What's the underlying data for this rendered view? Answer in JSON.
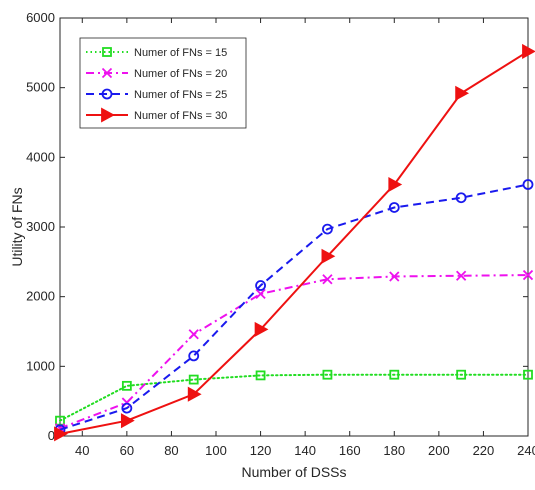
{
  "chart_data": {
    "type": "line",
    "xlabel": "Number of DSSs",
    "ylabel": "Utility of FNs",
    "xlim": [
      30,
      240
    ],
    "ylim": [
      0,
      6000
    ],
    "xticks": [
      40,
      60,
      80,
      100,
      120,
      140,
      160,
      180,
      200,
      220,
      240
    ],
    "yticks": [
      0,
      1000,
      2000,
      3000,
      4000,
      5000,
      6000
    ],
    "grid": false,
    "legend_position": "top-left",
    "x": [
      30,
      60,
      90,
      120,
      150,
      180,
      210,
      240
    ],
    "series": [
      {
        "name": "Numer of FNs = 15",
        "color": "#22dd22",
        "dash": "dotted",
        "marker": "square",
        "values": [
          220,
          720,
          810,
          870,
          880,
          880,
          880,
          880
        ]
      },
      {
        "name": "Numer of FNs = 20",
        "color": "#ee11ee",
        "dash": "dashdot",
        "marker": "x",
        "values": [
          110,
          480,
          1460,
          2040,
          2250,
          2290,
          2300,
          2310
        ]
      },
      {
        "name": "Numer of FNs = 25",
        "color": "#1a1aee",
        "dash": "dashed",
        "marker": "circle",
        "values": [
          90,
          400,
          1150,
          2160,
          2970,
          3280,
          3420,
          3610
        ]
      },
      {
        "name": "Numer of FNs = 30",
        "color": "#ee1111",
        "dash": "solid",
        "marker": "triangle-right",
        "values": [
          30,
          220,
          600,
          1530,
          2580,
          3610,
          4920,
          5520
        ]
      }
    ]
  }
}
